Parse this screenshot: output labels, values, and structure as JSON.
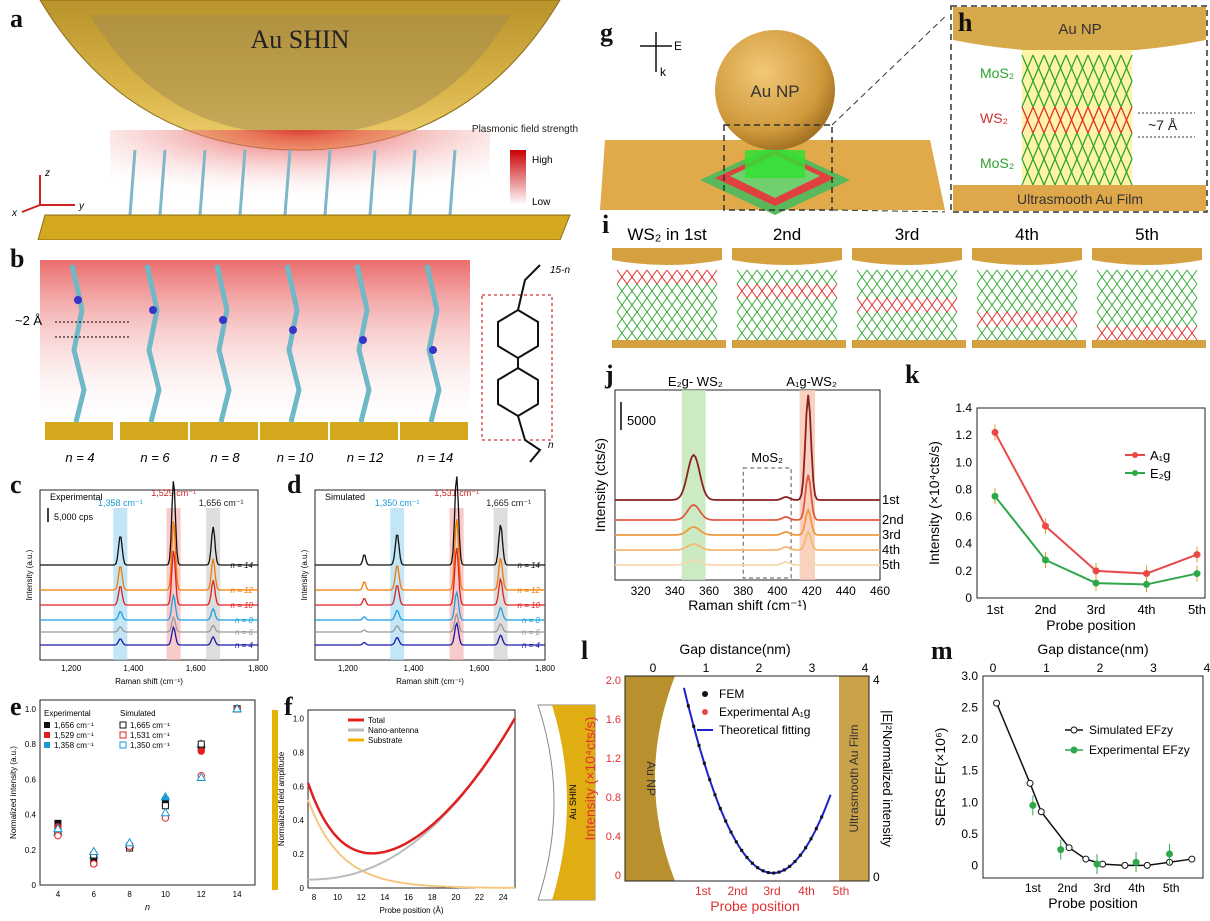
{
  "labels": {
    "a": "a",
    "b": "b",
    "c": "c",
    "d": "d",
    "e": "e",
    "f": "f",
    "g": "g",
    "h": "h",
    "i": "i",
    "j": "j",
    "k": "k",
    "l": "l",
    "m": "m"
  },
  "panel_a": {
    "title": "Au SHIN",
    "legend_title": "Plasmonic field strength",
    "legend_high": "High",
    "legend_low": "Low",
    "axis_z": "z",
    "axis_x": "x",
    "axis_y": "y"
  },
  "panel_b": {
    "gap": "~2 Å",
    "n_labels": [
      "n = 4",
      "n = 6",
      "n = 8",
      "n = 10",
      "n = 12",
      "n = 14"
    ],
    "sub_top": "15-n",
    "sub_bottom": "n"
  },
  "panel_c": {
    "title": "Experimental",
    "scale": "5,000 cps",
    "ylabel": "Intensity (a.u.)",
    "xlabel": "Raman shift (cm⁻¹)",
    "peak1": "1,358 cm⁻¹",
    "peak2": "1,529 cm⁻¹",
    "peak3": "1,656 cm⁻¹",
    "xticks": [
      "1,200",
      "1,400",
      "1,600",
      "1,800"
    ],
    "traces": [
      "n = 14",
      "n = 12",
      "n = 10",
      "n = 8",
      "n = 6",
      "n = 4"
    ]
  },
  "panel_d": {
    "title": "Simulated",
    "ylabel": "Intensity (a.u.)",
    "xlabel": "Raman shift (cm⁻¹)",
    "peak1": "1,350 cm⁻¹",
    "peak2": "1,531 cm⁻¹",
    "peak3": "1,665 cm⁻¹",
    "xticks": [
      "1,200",
      "1,400",
      "1,600",
      "1,800"
    ],
    "traces": [
      "n = 14",
      "n = 12",
      "n = 10",
      "n = 8",
      "n = 6",
      "n = 4"
    ]
  },
  "panel_e": {
    "ylabel": "Normalized intensity (a.u.)",
    "xlabel": "n",
    "legend_exp": "Experimental",
    "legend_sim": "Simulated",
    "exp_items": [
      "1,656 cm⁻¹",
      "1,529 cm⁻¹",
      "1,358 cm⁻¹"
    ],
    "sim_items": [
      "1,665 cm⁻¹",
      "1,531 cm⁻¹",
      "1,350 cm⁻¹"
    ],
    "xticks": [
      "4",
      "6",
      "8",
      "10",
      "12",
      "14"
    ],
    "yticks": [
      "0",
      "0.2",
      "0.4",
      "0.6",
      "0.8",
      "1.0"
    ]
  },
  "panel_f": {
    "ylabel": "Normalized field amplitude",
    "xlabel": "Probe position (Å)",
    "legend": [
      "Total",
      "Nano-antenna",
      "Substrate"
    ],
    "xticks": [
      "8",
      "10",
      "12",
      "14",
      "16",
      "18",
      "20",
      "22",
      "24"
    ],
    "yticks": [
      "0",
      "0.2",
      "0.4",
      "0.6",
      "0.8",
      "1.0"
    ],
    "shin": "Au SHIN"
  },
  "panel_g": {
    "np": "Au NP",
    "e": "E",
    "k": "k"
  },
  "panel_h": {
    "np": "Au NP",
    "layers": [
      "MoS₂",
      "WS₂",
      "MoS₂"
    ],
    "gap": "~7 Å",
    "film": "Ultrasmooth Au Film"
  },
  "panel_i": {
    "labels": [
      "WS₂ in 1st",
      "2nd",
      "3rd",
      "4th",
      "5th"
    ]
  },
  "panel_j": {
    "peak_e": "E₂g- WS₂",
    "peak_a": "A₁g-WS₂",
    "mos2": "MoS₂",
    "scale": "5000",
    "ylabel": "Intensity (cts/s)",
    "xlabel": "Raman shift (cm⁻¹)",
    "xticks": [
      "320",
      "340",
      "360",
      "380",
      "400",
      "420",
      "440",
      "460"
    ],
    "traces": [
      "1st",
      "2nd",
      "3rd",
      "4th",
      "5th"
    ]
  },
  "panel_k": {
    "ylabel": "Intensity (×10⁴cts/s)",
    "xlabel": "Probe position",
    "legend": [
      "A₁g",
      "E₂g"
    ],
    "xticks": [
      "1st",
      "2nd",
      "3rd",
      "4th",
      "5th"
    ],
    "yticks": [
      "0",
      "0.2",
      "0.4",
      "0.6",
      "0.8",
      "1.0",
      "1.2",
      "1.4"
    ]
  },
  "panel_l": {
    "top_label": "Gap distance(nm)",
    "ylabel": "Intensity (×10⁴cts/s)",
    "xlabel": "Probe position",
    "y2label": "|E|²Normalized intensity",
    "legend": [
      "FEM",
      "Experimental A₁g",
      "Theoretical fitting"
    ],
    "np": "Au NP",
    "film": "Ultrasmooth Au Film",
    "top_ticks": [
      "0",
      "1",
      "2",
      "3",
      "4"
    ],
    "yticks": [
      "0",
      "0.4",
      "0.8",
      "1.2",
      "1.6",
      "2.0"
    ],
    "y2ticks": [
      "0",
      "4"
    ],
    "xticks": [
      "1st",
      "2nd",
      "3rd",
      "4th",
      "5th"
    ]
  },
  "panel_m": {
    "top_label": "Gap distance(nm)",
    "ylabel": "SERS EF(×10⁶)",
    "xlabel": "Probe position",
    "legend": [
      "Simulated EFzy",
      "Experimental EFzy"
    ],
    "top_ticks": [
      "0",
      "1",
      "2",
      "3",
      "4"
    ],
    "yticks": [
      "0",
      "0.5",
      "1.0",
      "1.5",
      "2.0",
      "2.5",
      "3.0"
    ],
    "xticks": [
      "1st",
      "2nd",
      "3rd",
      "4th",
      "5th"
    ]
  },
  "chart_data": [
    {
      "type": "scatter",
      "panel": "e",
      "xlabel": "n",
      "ylabel": "Normalized intensity (a.u.)",
      "ylim": [
        0,
        1.05
      ],
      "x": [
        4,
        6,
        8,
        10,
        12,
        14
      ],
      "series": [
        {
          "name": "Experimental 1,656 cm⁻¹",
          "values": [
            0.35,
            0.13,
            0.22,
            0.48,
            0.78,
            1.0
          ]
        },
        {
          "name": "Experimental 1,529 cm⁻¹",
          "values": [
            0.33,
            0.12,
            0.21,
            0.45,
            0.76,
            1.0
          ]
        },
        {
          "name": "Experimental 1,358 cm⁻¹",
          "values": [
            0.3,
            0.17,
            0.23,
            0.5,
            0.8,
            1.0
          ]
        },
        {
          "name": "Simulated 1,665 cm⁻¹",
          "values": [
            0.3,
            0.17,
            0.21,
            0.45,
            0.8,
            1.0
          ]
        },
        {
          "name": "Simulated 1,531 cm⁻¹",
          "values": [
            0.28,
            0.12,
            0.22,
            0.38,
            0.62,
            1.0
          ]
        },
        {
          "name": "Simulated 1,350 cm⁻¹",
          "values": [
            0.32,
            0.19,
            0.24,
            0.41,
            0.61,
            1.0
          ]
        }
      ]
    },
    {
      "type": "line",
      "panel": "k",
      "xlabel": "Probe position",
      "ylabel": "Intensity (×10⁴cts/s)",
      "ylim": [
        0,
        1.4
      ],
      "categories": [
        "1st",
        "2nd",
        "3rd",
        "4th",
        "5th"
      ],
      "series": [
        {
          "name": "A₁g",
          "values": [
            1.22,
            0.53,
            0.2,
            0.18,
            0.32
          ]
        },
        {
          "name": "E₂g",
          "values": [
            0.75,
            0.28,
            0.11,
            0.1,
            0.18
          ]
        }
      ]
    },
    {
      "type": "scatter",
      "panel": "m",
      "xlabel": "Probe position",
      "ylabel": "SERS EF(×10⁶)",
      "ylim": [
        -0.2,
        3.0
      ],
      "series": [
        {
          "name": "Simulated EFzy",
          "x": [
            0.1,
            0.7,
            0.9,
            1.4,
            1.7,
            2.0,
            2.4,
            2.8,
            3.2,
            3.6
          ],
          "values": [
            2.57,
            1.3,
            0.85,
            0.28,
            0.1,
            0.02,
            0,
            0,
            0.05,
            0.1
          ]
        },
        {
          "name": "Experimental EFzy",
          "x": [
            0.75,
            1.25,
            1.9,
            2.6,
            3.2
          ],
          "values": [
            0.95,
            0.25,
            0.02,
            0.05,
            0.18
          ]
        }
      ]
    }
  ]
}
